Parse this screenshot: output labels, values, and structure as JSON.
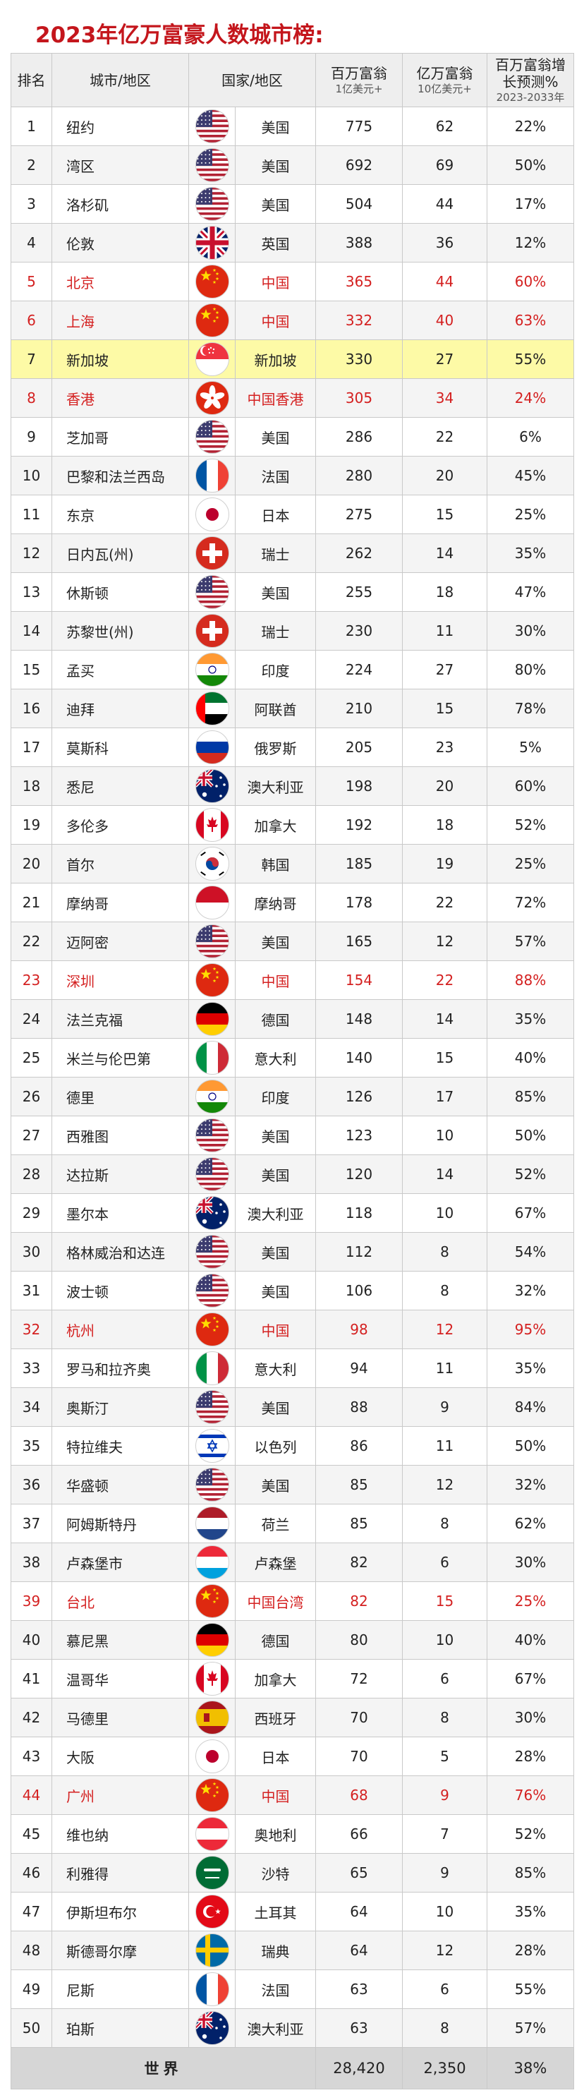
{
  "title": "2023年亿万富豪人数城市榜:",
  "headers": {
    "rank": "排名",
    "city": "城市/地区",
    "country": "国家/地区",
    "millionaires": "百万富翁",
    "millionaires_sub": "1亿美元+",
    "billionaires": "亿万富翁",
    "billionaires_sub": "10亿美元+",
    "growth_line1": "百万富翁增",
    "growth_line2": "长预测%",
    "growth_sub": "2023-2033年"
  },
  "colors": {
    "title": "#c4161c",
    "china_text": "#d42020",
    "highlight": "#fdfaa6",
    "footer": "#d6d6d6"
  },
  "rows": [
    {
      "rank": "1",
      "city": "纽约",
      "country": "美国",
      "flag": "us",
      "m": "775",
      "b": "62",
      "g": "22%"
    },
    {
      "rank": "2",
      "city": "湾区",
      "country": "美国",
      "flag": "us",
      "m": "692",
      "b": "69",
      "g": "50%"
    },
    {
      "rank": "3",
      "city": "洛杉矶",
      "country": "美国",
      "flag": "us",
      "m": "504",
      "b": "44",
      "g": "17%"
    },
    {
      "rank": "4",
      "city": "伦敦",
      "country": "英国",
      "flag": "uk",
      "m": "388",
      "b": "36",
      "g": "12%"
    },
    {
      "rank": "5",
      "city": "北京",
      "country": "中国",
      "flag": "cn",
      "m": "365",
      "b": "44",
      "g": "60%",
      "cn": true
    },
    {
      "rank": "6",
      "city": "上海",
      "country": "中国",
      "flag": "cn",
      "m": "332",
      "b": "40",
      "g": "63%",
      "cn": true
    },
    {
      "rank": "7",
      "city": "新加坡",
      "country": "新加坡",
      "flag": "sg",
      "m": "330",
      "b": "27",
      "g": "55%",
      "hl": true
    },
    {
      "rank": "8",
      "city": "香港",
      "country": "中国香港",
      "flag": "hk",
      "m": "305",
      "b": "34",
      "g": "24%",
      "cn": true
    },
    {
      "rank": "9",
      "city": "芝加哥",
      "country": "美国",
      "flag": "us",
      "m": "286",
      "b": "22",
      "g": "6%"
    },
    {
      "rank": "10",
      "city": "巴黎和法兰西岛",
      "country": "法国",
      "flag": "fr",
      "m": "280",
      "b": "20",
      "g": "45%"
    },
    {
      "rank": "11",
      "city": "东京",
      "country": "日本",
      "flag": "jp",
      "m": "275",
      "b": "15",
      "g": "25%"
    },
    {
      "rank": "12",
      "city": "日内瓦(州)",
      "country": "瑞士",
      "flag": "ch",
      "m": "262",
      "b": "14",
      "g": "35%"
    },
    {
      "rank": "13",
      "city": "休斯顿",
      "country": "美国",
      "flag": "us",
      "m": "255",
      "b": "18",
      "g": "47%"
    },
    {
      "rank": "14",
      "city": "苏黎世(州)",
      "country": "瑞士",
      "flag": "ch",
      "m": "230",
      "b": "11",
      "g": "30%"
    },
    {
      "rank": "15",
      "city": "孟买",
      "country": "印度",
      "flag": "in",
      "m": "224",
      "b": "27",
      "g": "80%"
    },
    {
      "rank": "16",
      "city": "迪拜",
      "country": "阿联酋",
      "flag": "ae",
      "m": "210",
      "b": "15",
      "g": "78%"
    },
    {
      "rank": "17",
      "city": "莫斯科",
      "country": "俄罗斯",
      "flag": "ru",
      "m": "205",
      "b": "23",
      "g": "5%"
    },
    {
      "rank": "18",
      "city": "悉尼",
      "country": "澳大利亚",
      "flag": "au",
      "m": "198",
      "b": "20",
      "g": "60%"
    },
    {
      "rank": "19",
      "city": "多伦多",
      "country": "加拿大",
      "flag": "ca",
      "m": "192",
      "b": "18",
      "g": "52%"
    },
    {
      "rank": "20",
      "city": "首尔",
      "country": "韩国",
      "flag": "kr",
      "m": "185",
      "b": "19",
      "g": "25%"
    },
    {
      "rank": "21",
      "city": "摩纳哥",
      "country": "摩纳哥",
      "flag": "mc",
      "m": "178",
      "b": "22",
      "g": "72%"
    },
    {
      "rank": "22",
      "city": "迈阿密",
      "country": "美国",
      "flag": "us",
      "m": "165",
      "b": "12",
      "g": "57%"
    },
    {
      "rank": "23",
      "city": "深圳",
      "country": "中国",
      "flag": "cn",
      "m": "154",
      "b": "22",
      "g": "88%",
      "cn": true
    },
    {
      "rank": "24",
      "city": "法兰克福",
      "country": "德国",
      "flag": "de",
      "m": "148",
      "b": "14",
      "g": "35%"
    },
    {
      "rank": "25",
      "city": "米兰与伦巴第",
      "country": "意大利",
      "flag": "it",
      "m": "140",
      "b": "15",
      "g": "40%"
    },
    {
      "rank": "26",
      "city": "德里",
      "country": "印度",
      "flag": "in",
      "m": "126",
      "b": "17",
      "g": "85%"
    },
    {
      "rank": "27",
      "city": "西雅图",
      "country": "美国",
      "flag": "us",
      "m": "123",
      "b": "10",
      "g": "50%"
    },
    {
      "rank": "28",
      "city": "达拉斯",
      "country": "美国",
      "flag": "us",
      "m": "120",
      "b": "14",
      "g": "52%"
    },
    {
      "rank": "29",
      "city": "墨尔本",
      "country": "澳大利亚",
      "flag": "au",
      "m": "118",
      "b": "10",
      "g": "67%"
    },
    {
      "rank": "30",
      "city": "格林威治和达连",
      "country": "美国",
      "flag": "us",
      "m": "112",
      "b": "8",
      "g": "54%"
    },
    {
      "rank": "31",
      "city": "波士顿",
      "country": "美国",
      "flag": "us",
      "m": "106",
      "b": "8",
      "g": "32%"
    },
    {
      "rank": "32",
      "city": "杭州",
      "country": "中国",
      "flag": "cn",
      "m": "98",
      "b": "12",
      "g": "95%",
      "cn": true
    },
    {
      "rank": "33",
      "city": "罗马和拉齐奥",
      "country": "意大利",
      "flag": "it",
      "m": "94",
      "b": "11",
      "g": "35%"
    },
    {
      "rank": "34",
      "city": "奥斯汀",
      "country": "美国",
      "flag": "us",
      "m": "88",
      "b": "9",
      "g": "84%"
    },
    {
      "rank": "35",
      "city": "特拉维夫",
      "country": "以色列",
      "flag": "il",
      "m": "86",
      "b": "11",
      "g": "50%"
    },
    {
      "rank": "36",
      "city": "华盛顿",
      "country": "美国",
      "flag": "us",
      "m": "85",
      "b": "12",
      "g": "32%"
    },
    {
      "rank": "37",
      "city": "阿姆斯特丹",
      "country": "荷兰",
      "flag": "nl",
      "m": "85",
      "b": "8",
      "g": "62%"
    },
    {
      "rank": "38",
      "city": "卢森堡市",
      "country": "卢森堡",
      "flag": "lu",
      "m": "82",
      "b": "6",
      "g": "30%"
    },
    {
      "rank": "39",
      "city": "台北",
      "country": "中国台湾",
      "flag": "tw",
      "m": "82",
      "b": "15",
      "g": "25%",
      "cn": true
    },
    {
      "rank": "40",
      "city": "慕尼黑",
      "country": "德国",
      "flag": "de",
      "m": "80",
      "b": "10",
      "g": "40%"
    },
    {
      "rank": "41",
      "city": "温哥华",
      "country": "加拿大",
      "flag": "ca",
      "m": "72",
      "b": "6",
      "g": "67%"
    },
    {
      "rank": "42",
      "city": "马德里",
      "country": "西班牙",
      "flag": "es",
      "m": "70",
      "b": "8",
      "g": "30%"
    },
    {
      "rank": "43",
      "city": "大阪",
      "country": "日本",
      "flag": "jp",
      "m": "70",
      "b": "5",
      "g": "28%"
    },
    {
      "rank": "44",
      "city": "广州",
      "country": "中国",
      "flag": "cn",
      "m": "68",
      "b": "9",
      "g": "76%",
      "cn": true
    },
    {
      "rank": "45",
      "city": "维也纳",
      "country": "奥地利",
      "flag": "at",
      "m": "66",
      "b": "7",
      "g": "52%"
    },
    {
      "rank": "46",
      "city": "利雅得",
      "country": "沙特",
      "flag": "sa",
      "m": "65",
      "b": "9",
      "g": "85%"
    },
    {
      "rank": "47",
      "city": "伊斯坦布尔",
      "country": "土耳其",
      "flag": "tr",
      "m": "64",
      "b": "10",
      "g": "35%"
    },
    {
      "rank": "48",
      "city": "斯德哥尔摩",
      "country": "瑞典",
      "flag": "se",
      "m": "64",
      "b": "12",
      "g": "28%"
    },
    {
      "rank": "49",
      "city": "尼斯",
      "country": "法国",
      "flag": "fr",
      "m": "63",
      "b": "6",
      "g": "55%"
    },
    {
      "rank": "50",
      "city": "珀斯",
      "country": "澳大利亚",
      "flag": "au",
      "m": "63",
      "b": "8",
      "g": "57%"
    }
  ],
  "footer": {
    "label": "世界",
    "m": "28,420",
    "b": "2,350",
    "g": "38%"
  }
}
